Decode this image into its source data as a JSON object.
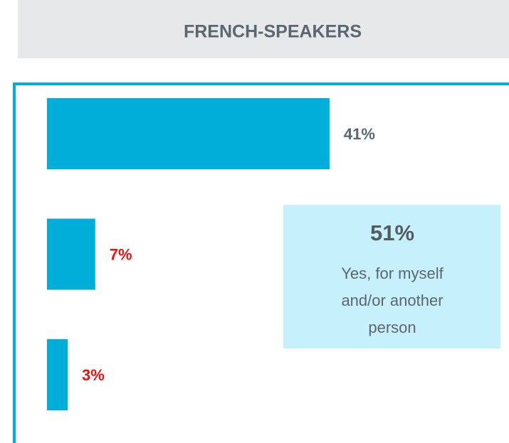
{
  "chart_data": {
    "type": "bar",
    "orientation": "horizontal",
    "title": "FRENCH-SPEAKERS",
    "categories": [
      null,
      null,
      null
    ],
    "values": [
      41,
      7,
      3
    ],
    "value_labels": [
      "41%",
      "7%",
      "3%"
    ],
    "value_label_colors": [
      "#5b6670",
      "#ee1111",
      "#ee1111"
    ],
    "color": "#00afd9",
    "annotation": {
      "value": 51,
      "value_label": "51%",
      "text": [
        "Yes, for myself",
        "and/or another",
        "person"
      ]
    }
  }
}
